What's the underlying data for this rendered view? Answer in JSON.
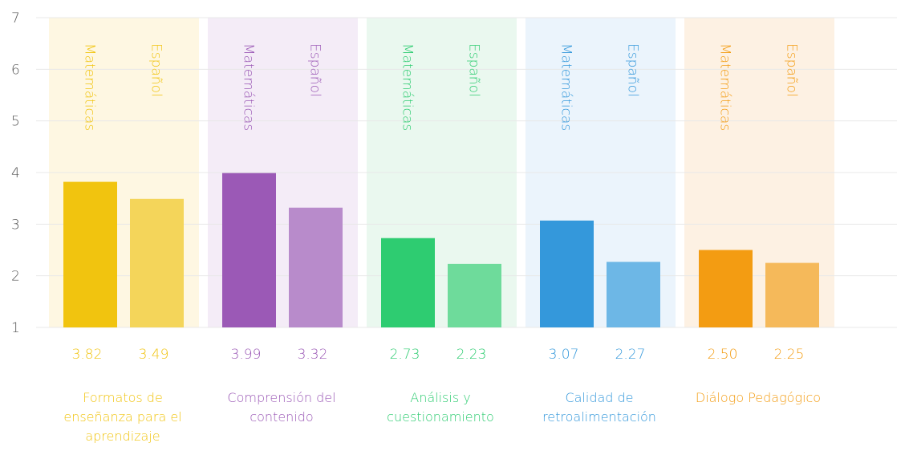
{
  "chart_data": {
    "type": "bar",
    "categories": [
      "Formatos de enseñanza para el aprendizaje",
      "Comprensión del contenido",
      "Análisis y cuestionamiento",
      "Calidad de retroalimentación",
      "Diálogo Pedagógico"
    ],
    "band_colors": [
      "#fef7e2",
      "#f4ecf7",
      "#eaf8ef",
      "#ebf4fc",
      "#fdf1e3"
    ],
    "series": [
      {
        "name": "Matemáticas",
        "values": [
          3.82,
          3.99,
          2.73,
          3.07,
          2.5
        ],
        "value_labels": [
          "3.82",
          "3.99",
          "2.73",
          "3.07",
          "2.50"
        ],
        "colors": [
          "#f1c40f",
          "#9b59b6",
          "#2ecc71",
          "#3498db",
          "#f39c12"
        ]
      },
      {
        "name": "Español",
        "values": [
          3.49,
          3.32,
          2.23,
          2.27,
          2.25
        ],
        "value_labels": [
          "3.49",
          "3.32",
          "2.23",
          "2.27",
          "2.25"
        ],
        "colors": [
          "#f4d55a",
          "#b88bcb",
          "#6edb9b",
          "#6db7e6",
          "#f5b95a"
        ]
      }
    ],
    "ylim": [
      1,
      7
    ],
    "yticks": [
      1,
      2,
      3,
      4,
      5,
      6,
      7
    ],
    "grid": true
  }
}
